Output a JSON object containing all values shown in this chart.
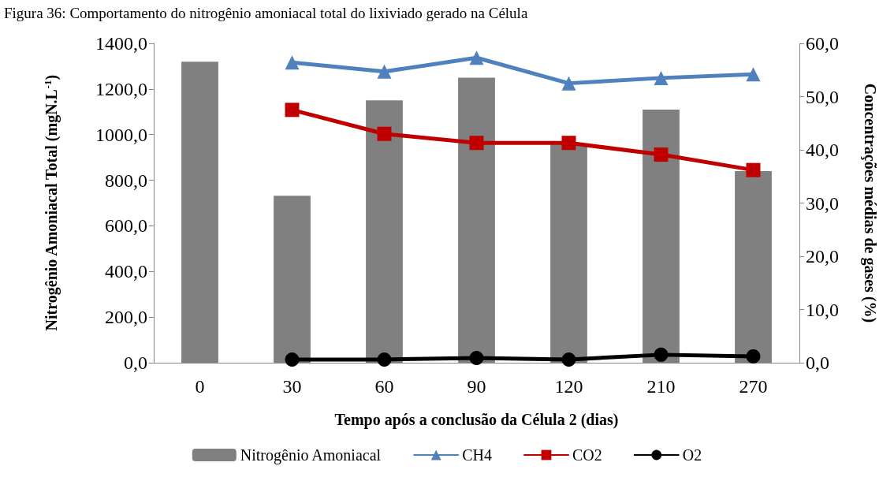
{
  "chart_data": {
    "type": "bar",
    "title": "Figura 36: Comportamento do nitrogênio amoniacal total do lixiviado gerado na Célula",
    "xlabel": "Tempo após a conclusão da Célula 2 (dias)",
    "ylabel": "Nitrogênio Amoniacal Total (mgN.L$^{-1}$)",
    "y2label": "Concentrações médias de gases (%)",
    "categories": [
      "0",
      "30",
      "60",
      "90",
      "120",
      "210",
      "270"
    ],
    "series": [
      {
        "name": "Nitrogênio Amoniacal",
        "color": "#808080",
        "values": [
          1320,
          732,
          1150,
          1250,
          960,
          1110,
          840
        ]
      },
      {
        "name": "CH4",
        "type": "line",
        "axis": "y2",
        "marker": "triangle",
        "color": "#4f81bd",
        "values": [
          null,
          56.4,
          54.7,
          57.3,
          52.5,
          53.5,
          54.2
        ]
      },
      {
        "name": "CO2",
        "type": "line",
        "axis": "y2",
        "marker": "square",
        "color": "#c00000",
        "values": [
          null,
          47.5,
          43.0,
          41.3,
          41.3,
          39.1,
          36.2
        ]
      },
      {
        "name": "O2",
        "type": "line",
        "axis": "y2",
        "marker": "circle",
        "color": "#000000",
        "values": [
          null,
          0.6,
          0.6,
          0.9,
          0.6,
          1.5,
          1.2
        ]
      }
    ],
    "ylim": [
      0,
      1400
    ],
    "yticks": [
      {
        "value": 0,
        "label": "0,0"
      },
      {
        "value": 200,
        "label": "200,0"
      },
      {
        "value": 400,
        "label": "400,0"
      },
      {
        "value": 600,
        "label": "600,0"
      },
      {
        "value": 800,
        "label": "800,0"
      },
      {
        "value": 1000,
        "label": "1000,0"
      },
      {
        "value": 1200,
        "label": "1200,0"
      },
      {
        "value": 1400,
        "label": "1400,0"
      }
    ],
    "y2lim": [
      0,
      60
    ],
    "y2ticks": [
      {
        "value": 0,
        "label": "0,0"
      },
      {
        "value": 10,
        "label": "10,0"
      },
      {
        "value": 20,
        "label": "20,0"
      },
      {
        "value": 30,
        "label": "30,0"
      },
      {
        "value": 40,
        "label": "40,0"
      },
      {
        "value": 50,
        "label": "50,0"
      },
      {
        "value": 60,
        "label": "60,0"
      }
    ],
    "grid": false,
    "legend": "bottom"
  }
}
